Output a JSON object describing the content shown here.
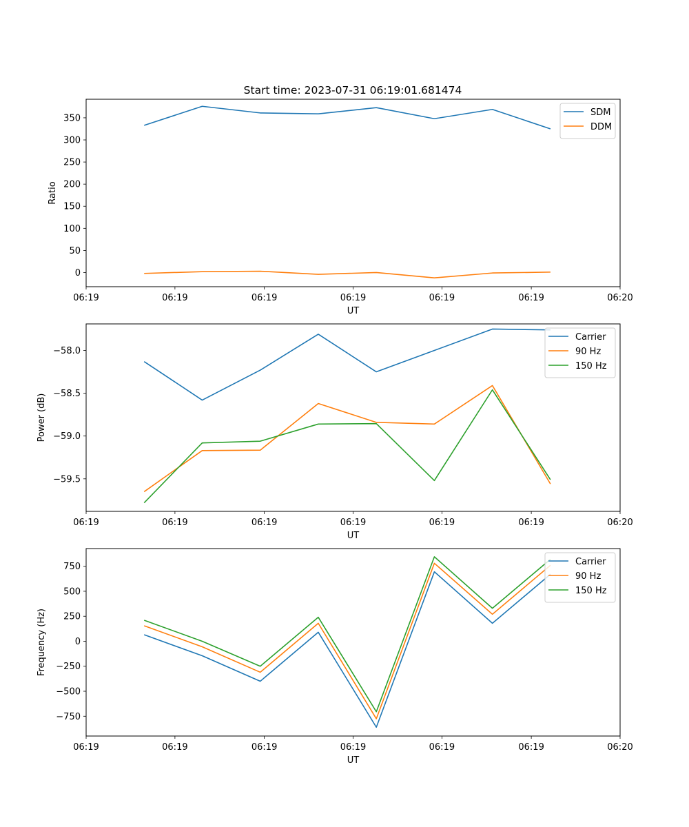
{
  "figure": {
    "title": "Start time: 2023-07-31 06:19:01.681474"
  },
  "chart_data": [
    {
      "type": "line",
      "title": "Start time: 2023-07-31 06:19:01.681474",
      "xlabel": "UT",
      "ylabel": "Ratio",
      "x": [
        1,
        2,
        3,
        4,
        5,
        6,
        7,
        8
      ],
      "xlim": [
        0,
        9.2
      ],
      "x_ticks": [
        0,
        1.53,
        3.07,
        4.6,
        6.13,
        7.67,
        9.2
      ],
      "x_tick_labels": [
        "06:19",
        "06:19",
        "06:19",
        "06:19",
        "06:19",
        "06:19",
        "06:20"
      ],
      "ylim": [
        -32,
        392
      ],
      "y_ticks": [
        0,
        50,
        100,
        150,
        200,
        250,
        300,
        350
      ],
      "y_tick_labels": [
        "0",
        "50",
        "100",
        "150",
        "200",
        "250",
        "300",
        "350"
      ],
      "legend_position": "top-right",
      "series": [
        {
          "name": "SDM",
          "color": "#1f77b4",
          "values": [
            333,
            376,
            361,
            359,
            373,
            348,
            369,
            325
          ]
        },
        {
          "name": "DDM",
          "color": "#ff7f0e",
          "values": [
            -2,
            2,
            3,
            -4,
            0,
            -12,
            -1,
            1
          ]
        }
      ]
    },
    {
      "type": "line",
      "title": "",
      "xlabel": "UT",
      "ylabel": "Power (dB)",
      "x": [
        1,
        2,
        3,
        4,
        5,
        6,
        7,
        8
      ],
      "xlim": [
        0,
        9.2
      ],
      "x_ticks": [
        0,
        1.53,
        3.07,
        4.6,
        6.13,
        7.67,
        9.2
      ],
      "x_tick_labels": [
        "06:19",
        "06:19",
        "06:19",
        "06:19",
        "06:19",
        "06:19",
        "06:20"
      ],
      "ylim": [
        -59.88,
        -57.69
      ],
      "y_ticks": [
        -59.5,
        -59.0,
        -58.5,
        -58.0
      ],
      "y_tick_labels": [
        "−59.5",
        "−59.0",
        "−58.5",
        "−58.0"
      ],
      "legend_position": "top-right",
      "series": [
        {
          "name": "Carrier",
          "color": "#1f77b4",
          "values": [
            -58.13,
            -58.58,
            -58.23,
            -57.81,
            -58.25,
            -58.0,
            -57.75,
            -57.76
          ]
        },
        {
          "name": "90 Hz",
          "color": "#ff7f0e",
          "values": [
            -59.65,
            -59.17,
            -59.165,
            -58.62,
            -58.84,
            -58.86,
            -58.41,
            -59.56
          ]
        },
        {
          "name": "150 Hz",
          "color": "#2ca02c",
          "values": [
            -59.78,
            -59.08,
            -59.06,
            -58.86,
            -58.855,
            -59.52,
            -58.46,
            -59.51
          ]
        }
      ]
    },
    {
      "type": "line",
      "title": "",
      "xlabel": "UT",
      "ylabel": "Frequency (Hz)",
      "x": [
        1,
        2,
        3,
        4,
        5,
        6,
        7,
        8
      ],
      "xlim": [
        0,
        9.2
      ],
      "x_ticks": [
        0,
        1.53,
        3.07,
        4.6,
        6.13,
        7.67,
        9.2
      ],
      "x_tick_labels": [
        "06:19",
        "06:19",
        "06:19",
        "06:19",
        "06:19",
        "06:19",
        "06:20"
      ],
      "ylim": [
        -948,
        927
      ],
      "y_ticks": [
        -750,
        -500,
        -250,
        0,
        250,
        500,
        750
      ],
      "y_tick_labels": [
        "−750",
        "−500",
        "−250",
        "0",
        "250",
        "500",
        "750"
      ],
      "legend_position": "top-right",
      "series": [
        {
          "name": "Carrier",
          "color": "#1f77b4",
          "values": [
            65,
            -145,
            -400,
            90,
            -860,
            695,
            180,
            670
          ]
        },
        {
          "name": "90 Hz",
          "color": "#ff7f0e",
          "values": [
            155,
            -55,
            -310,
            180,
            -775,
            780,
            270,
            760
          ]
        },
        {
          "name": "150 Hz",
          "color": "#2ca02c",
          "values": [
            210,
            0,
            -250,
            240,
            -705,
            845,
            330,
            820
          ]
        }
      ]
    }
  ]
}
